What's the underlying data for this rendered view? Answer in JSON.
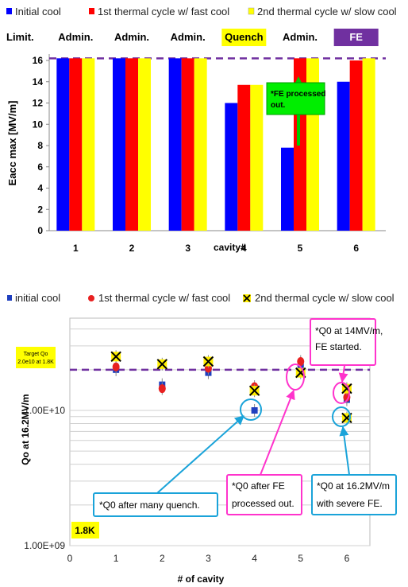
{
  "chart_data": [
    {
      "type": "bar",
      "categories": [
        "1",
        "2",
        "3",
        "4",
        "5",
        "6"
      ],
      "series": [
        {
          "name": "Initial cool",
          "color": "#0000ff",
          "values": [
            16.2,
            16.2,
            16.2,
            12.0,
            7.8,
            14.0
          ]
        },
        {
          "name": "1st thermal cycle w/ fast cool",
          "color": "#ff0000",
          "values": [
            16.2,
            16.2,
            16.2,
            13.7,
            16.2,
            16.0
          ]
        },
        {
          "name": "2nd thermal cycle w/ slow cool",
          "color": "#ffff00",
          "values": [
            16.2,
            16.2,
            16.2,
            13.7,
            16.2,
            16.2
          ]
        }
      ],
      "ylabel": "Eacc max [MV/m]",
      "xlabel": "cavity#",
      "ylim": [
        0,
        16
      ],
      "yticks": [
        0,
        2,
        4,
        6,
        8,
        10,
        12,
        14,
        16
      ],
      "target_line": 16.2,
      "limit_row": {
        "label": "Limit.",
        "items": [
          {
            "text": "Admin.",
            "style": "plain"
          },
          {
            "text": "Admin.",
            "style": "plain"
          },
          {
            "text": "Admin.",
            "style": "plain"
          },
          {
            "text": "Quench",
            "style": "yellow"
          },
          {
            "text": "Admin.",
            "style": "plain"
          },
          {
            "text": "FE",
            "style": "purple"
          }
        ]
      },
      "annotation": {
        "text_line1": "*FE processed",
        "text_line2": "out.",
        "color": "#00dd00"
      },
      "legend_position": "top"
    },
    {
      "type": "scatter",
      "ylabel": "Qo at 16.2MV/m",
      "xlabel": "# of cavity",
      "xlim": [
        0,
        6.5
      ],
      "xticks": [
        0,
        1,
        2,
        3,
        4,
        5,
        6
      ],
      "y_scale": "log",
      "ylim": [
        1000000000.0,
        50000000000.0
      ],
      "ytick_labels": [
        "1.00E+09",
        "1.00E+10"
      ],
      "series": [
        {
          "name": "initial cool",
          "marker": "square",
          "color": "#1f3fbf",
          "points": [
            [
              1,
              20000000000.0
            ],
            [
              2,
              15500000000.0
            ],
            [
              3,
              19000000000.0
            ],
            [
              4,
              10000000000.0
            ],
            [
              5,
              21000000000.0
            ],
            [
              6,
              12000000000.0
            ]
          ]
        },
        {
          "name": "1st thermal cycle w/ fast cool",
          "marker": "circle",
          "color": "#e82020",
          "points": [
            [
              1,
              21000000000.0
            ],
            [
              2,
              14500000000.0
            ],
            [
              3,
              20500000000.0
            ],
            [
              4,
              15000000000.0
            ],
            [
              5,
              23000000000.0
            ],
            [
              6,
              12500000000.0
            ]
          ]
        },
        {
          "name": "2nd thermal cycle w/ slow cool",
          "marker": "x",
          "color": "#e8d800",
          "points": [
            [
              1,
              25000000000.0
            ],
            [
              2,
              22000000000.0
            ],
            [
              3,
              23000000000.0
            ],
            [
              4,
              14000000000.0
            ],
            [
              5,
              19000000000.0
            ],
            [
              6,
              14500000000.0
            ],
            [
              6,
              8800000000.0
            ]
          ]
        }
      ],
      "target_line": {
        "value": 20000000000.0,
        "label_line1": "Target Qo",
        "label_line2": "2.0e10 at 1.8K"
      },
      "temperature_label": "1.8K",
      "callouts": [
        {
          "lines": [
            "*Q0 at 14MV/m,",
            "FE started."
          ],
          "color": "#ff33cc"
        },
        {
          "lines": [
            "*Q0 after many quench."
          ],
          "color": "#1aa3d9"
        },
        {
          "lines": [
            "*Q0 after FE",
            "processed out."
          ],
          "color": "#ff33cc"
        },
        {
          "lines": [
            "*Q0 at 16.2MV/m",
            "with severe FE."
          ],
          "color": "#1aa3d9"
        }
      ],
      "legend_position": "top"
    }
  ]
}
